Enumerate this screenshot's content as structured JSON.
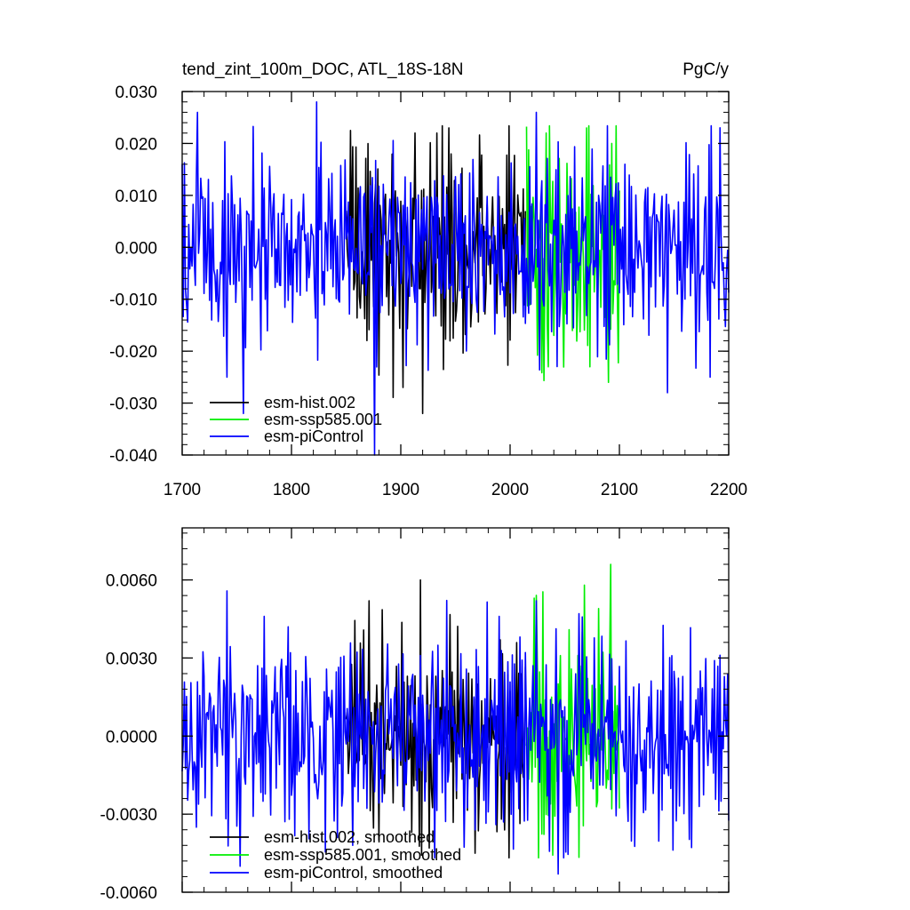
{
  "chart_data": [
    {
      "type": "line",
      "title": "tend_zint_100m_DOC, ATL_18S-18N",
      "units": "PgC/y",
      "xlim": [
        1700,
        2200
      ],
      "ylim": [
        -0.04,
        0.03
      ],
      "xticks": [
        "1700",
        "1800",
        "1900",
        "2000",
        "2100",
        "2200"
      ],
      "yticks": [
        "0.030",
        "0.020",
        "0.010",
        "0.000",
        "-0.010",
        "-0.020",
        "-0.030",
        "-0.040"
      ],
      "legend_position": "bottom-left",
      "series": [
        {
          "name": "esm-hist.002",
          "color": "#000000",
          "x_start": 1850,
          "x_end": 2014,
          "amplitude": 0.0095,
          "peaks": [
            [
              1913,
              0.022
            ],
            [
              1920,
              -0.032
            ],
            [
              1933,
              0.022
            ],
            [
              1944,
              0.023
            ],
            [
              1902,
              -0.027
            ]
          ]
        },
        {
          "name": "esm-ssp585.001",
          "color": "#00ee00",
          "x_start": 2015,
          "x_end": 2100,
          "amplitude": 0.0105,
          "peaks": [
            [
              2033,
              0.022
            ],
            [
              2035,
              -0.023
            ],
            [
              2070,
              0.023
            ],
            [
              2073,
              -0.023
            ],
            [
              2090,
              -0.026
            ],
            [
              2093,
              0.02
            ]
          ]
        },
        {
          "name": "esm-piControl",
          "color": "#0000ff",
          "x_start": 1700,
          "x_end": 2200,
          "amplitude": 0.0095,
          "peaks": [
            [
              1714,
              0.026
            ],
            [
              1756,
              -0.032
            ],
            [
              1823,
              0.028
            ],
            [
              1876,
              -0.04
            ],
            [
              2024,
              0.026
            ],
            [
              2144,
              -0.028
            ],
            [
              2183,
              -0.025
            ],
            [
              1741,
              -0.025
            ]
          ]
        }
      ]
    },
    {
      "type": "line",
      "title": "",
      "xlim": [
        1700,
        2200
      ],
      "ylim": [
        -0.006,
        0.008
      ],
      "yticks": [
        "0.0060",
        "0.0030",
        "0.0000",
        "-0.0030",
        "-0.0060"
      ],
      "legend_position": "bottom-left",
      "series": [
        {
          "name": "esm-hist.002, smoothed",
          "color": "#000000",
          "x_start": 1850,
          "x_end": 2014,
          "amplitude": 0.0019,
          "peaks": [
            [
              1918,
              0.006
            ],
            [
              1871,
              0.0052
            ],
            [
              1926,
              -0.0043
            ],
            [
              1968,
              -0.0045
            ],
            [
              1880,
              -0.004
            ]
          ]
        },
        {
          "name": "esm-ssp585.001, smoothed",
          "color": "#00ee00",
          "x_start": 2015,
          "x_end": 2100,
          "amplitude": 0.002,
          "peaks": [
            [
              2092,
              0.0066
            ],
            [
              2022,
              0.0053
            ],
            [
              2068,
              0.0058
            ],
            [
              2060,
              -0.002
            ],
            [
              2088,
              -0.002
            ]
          ]
        },
        {
          "name": "esm-piControl, smoothed",
          "color": "#0000ff",
          "x_start": 1700,
          "x_end": 2200,
          "amplitude": 0.0019,
          "peaks": [
            [
              1753,
              -0.005
            ],
            [
              1713,
              -0.0035
            ],
            [
              1775,
              0.0046
            ],
            [
              2044,
              -0.0053
            ],
            [
              1797,
              0.0042
            ],
            [
              2063,
              0.0047
            ],
            [
              2024,
              0.0052
            ],
            [
              1990,
              0.0046
            ]
          ]
        }
      ]
    }
  ]
}
